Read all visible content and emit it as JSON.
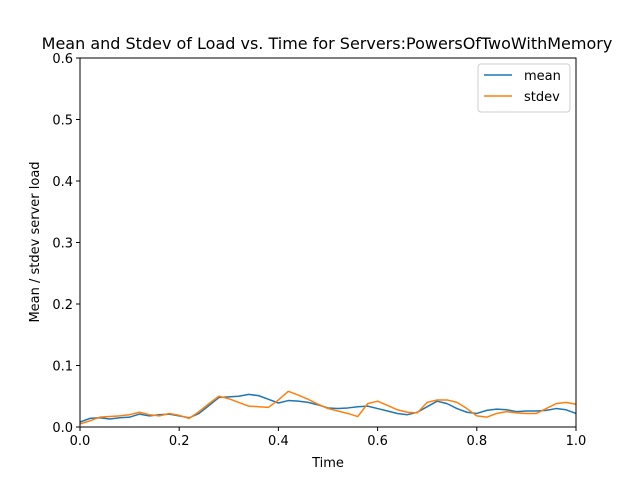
{
  "chart_data": {
    "type": "line",
    "title": "Mean and Stdev of Load vs. Time for Servers:PowersOfTwoWithMemory",
    "xlabel": "Time",
    "ylabel": "Mean / stdev server load",
    "xlim": [
      0.0,
      1.0
    ],
    "ylim": [
      0.0,
      0.6
    ],
    "xticks": [
      "0.0",
      "0.2",
      "0.4",
      "0.6",
      "0.8",
      "1.0"
    ],
    "yticks": [
      "0.0",
      "0.1",
      "0.2",
      "0.3",
      "0.4",
      "0.5",
      "0.6"
    ],
    "grid": false,
    "legend_position": "top-right",
    "series": [
      {
        "name": "mean",
        "color": "#1f77b4",
        "x": [
          0.0,
          0.02,
          0.04,
          0.06,
          0.08,
          0.1,
          0.12,
          0.14,
          0.16,
          0.18,
          0.2,
          0.22,
          0.24,
          0.26,
          0.28,
          0.3,
          0.32,
          0.34,
          0.36,
          0.38,
          0.4,
          0.42,
          0.44,
          0.46,
          0.48,
          0.5,
          0.52,
          0.54,
          0.56,
          0.58,
          0.6,
          0.62,
          0.64,
          0.66,
          0.68,
          0.7,
          0.72,
          0.74,
          0.76,
          0.78,
          0.8,
          0.82,
          0.84,
          0.86,
          0.88,
          0.9,
          0.92,
          0.94,
          0.96,
          0.98,
          1.0
        ],
        "values": [
          0.008,
          0.014,
          0.015,
          0.013,
          0.015,
          0.016,
          0.021,
          0.018,
          0.02,
          0.021,
          0.018,
          0.015,
          0.022,
          0.035,
          0.048,
          0.049,
          0.05,
          0.053,
          0.051,
          0.045,
          0.039,
          0.043,
          0.042,
          0.04,
          0.036,
          0.031,
          0.03,
          0.031,
          0.033,
          0.034,
          0.03,
          0.026,
          0.022,
          0.02,
          0.024,
          0.033,
          0.042,
          0.038,
          0.03,
          0.024,
          0.022,
          0.027,
          0.029,
          0.028,
          0.025,
          0.026,
          0.026,
          0.027,
          0.03,
          0.028,
          0.022
        ]
      },
      {
        "name": "stdev",
        "color": "#ff7f0e",
        "x": [
          0.0,
          0.02,
          0.04,
          0.06,
          0.08,
          0.1,
          0.12,
          0.14,
          0.16,
          0.18,
          0.2,
          0.22,
          0.24,
          0.26,
          0.28,
          0.3,
          0.32,
          0.34,
          0.36,
          0.38,
          0.4,
          0.42,
          0.44,
          0.46,
          0.48,
          0.5,
          0.52,
          0.54,
          0.56,
          0.58,
          0.6,
          0.62,
          0.64,
          0.66,
          0.68,
          0.7,
          0.72,
          0.74,
          0.76,
          0.78,
          0.8,
          0.82,
          0.84,
          0.86,
          0.88,
          0.9,
          0.92,
          0.94,
          0.96,
          0.98,
          1.0
        ],
        "values": [
          0.005,
          0.01,
          0.016,
          0.017,
          0.018,
          0.02,
          0.024,
          0.02,
          0.018,
          0.022,
          0.019,
          0.014,
          0.025,
          0.038,
          0.05,
          0.046,
          0.04,
          0.034,
          0.033,
          0.032,
          0.044,
          0.058,
          0.052,
          0.045,
          0.037,
          0.03,
          0.026,
          0.022,
          0.017,
          0.038,
          0.042,
          0.035,
          0.028,
          0.024,
          0.023,
          0.04,
          0.044,
          0.044,
          0.04,
          0.03,
          0.018,
          0.016,
          0.022,
          0.025,
          0.023,
          0.022,
          0.022,
          0.03,
          0.038,
          0.04,
          0.037
        ]
      }
    ]
  }
}
